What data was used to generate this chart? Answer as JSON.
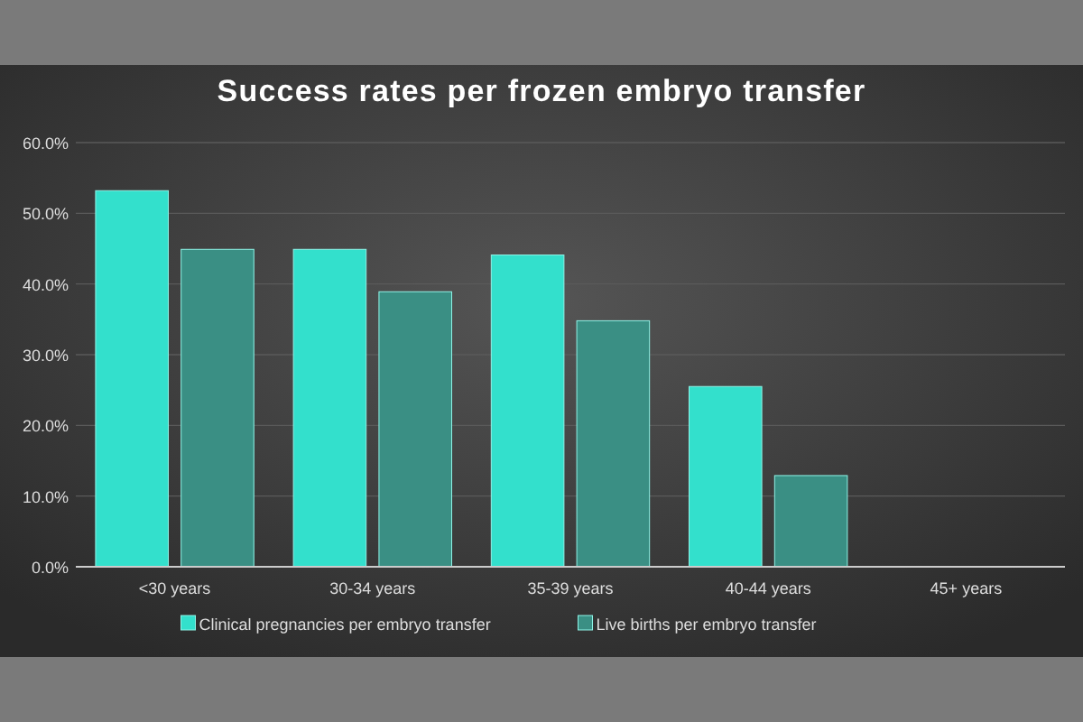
{
  "chart_data": {
    "type": "bar",
    "title": "Success rates per frozen embryo transfer",
    "categories": [
      "<30 years",
      "30-34 years",
      "35-39 years",
      "40-44 years",
      "45+ years"
    ],
    "series": [
      {
        "name": "Clinical pregnancies per embryo transfer",
        "color": "#33e0cc",
        "values": [
          53.2,
          44.9,
          44.1,
          25.5,
          null
        ]
      },
      {
        "name": "Live births per embryo transfer",
        "color": "#3a8f84",
        "values": [
          44.9,
          38.9,
          34.8,
          12.9,
          null
        ]
      }
    ],
    "ylim": [
      0,
      60
    ],
    "yticks": [
      {
        "value": 0,
        "label": "0.0%"
      },
      {
        "value": 10,
        "label": "10.0%"
      },
      {
        "value": 20,
        "label": "20.0%"
      },
      {
        "value": 30,
        "label": "30.0%"
      },
      {
        "value": 40,
        "label": "40.0%"
      },
      {
        "value": 50,
        "label": "50.0%"
      },
      {
        "value": 60,
        "label": "60.0%"
      }
    ],
    "grid": "y",
    "legend": "bottom"
  }
}
